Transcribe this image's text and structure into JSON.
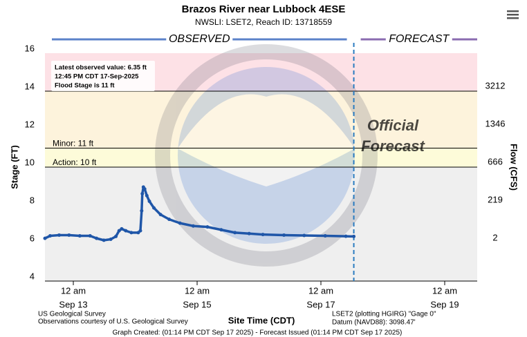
{
  "chart_data": {
    "type": "line",
    "title": "Brazos River near Lubbock 4ESE",
    "subtitle": "NWSLI: LSET2, Reach ID: 13718559",
    "observed_label": "OBSERVED",
    "forecast_label": "FORECAST",
    "watermark": [
      "Official",
      "Forecast"
    ],
    "ylabel": "Stage (FT)",
    "y2label": "Flow (CFS)",
    "xlabel": "Site Time (CDT)",
    "ylim": [
      4,
      16
    ],
    "yticks": [
      4,
      6,
      8,
      10,
      12,
      14,
      16
    ],
    "flow_ticks": [
      {
        "value": 14,
        "label": "3212"
      },
      {
        "value": 12,
        "label": "1346"
      },
      {
        "value": 10,
        "label": "666"
      },
      {
        "value": 8,
        "label": "219"
      },
      {
        "value": 6,
        "label": "2"
      }
    ],
    "xlim": [
      "Sep 12 13:00",
      "Sep 19 12:36"
    ],
    "xticks": [
      {
        "value": "Sep 13 00:00",
        "label": "12 am",
        "date": "Sep 13"
      },
      {
        "value": "Sep 15 00:00",
        "label": "12 am",
        "date": "Sep 15"
      },
      {
        "value": "Sep 17 00:00",
        "label": "12 am",
        "date": "Sep 17"
      },
      {
        "value": "Sep 19 00:00",
        "label": "12 am",
        "date": "Sep 19"
      }
    ],
    "forecast_start": "Sep 17 12:45",
    "bands": [
      {
        "from": 14,
        "to": 16,
        "color": "#fde1e6"
      },
      {
        "from": 11,
        "to": 14,
        "color": "#fdf3dc"
      },
      {
        "from": 10,
        "to": 11,
        "color": "#fdfbd9"
      },
      {
        "from": 4,
        "to": 10,
        "color": "#efefef"
      }
    ],
    "thresholds": [
      {
        "value": 14,
        "label": null
      },
      {
        "value": 11,
        "label": "Minor: 11 ft"
      },
      {
        "value": 10,
        "label": "Action: 10 ft"
      }
    ],
    "info": [
      "Latest observed value: 6.35 ft",
      "12:45 PM CDT 17-Sep-2025",
      "Flood Stage is 11 ft"
    ],
    "series": [
      {
        "name": "Observed",
        "color": "#1f56a8",
        "x": [
          "Sep 12 13:00",
          "Sep 12 15:00",
          "Sep 12 18:30",
          "Sep 12 22:20",
          "Sep 13 02:30",
          "Sep 13 06:30",
          "Sep 13 09:00",
          "Sep 13 11:50",
          "Sep 13 14:30",
          "Sep 13 16:30",
          "Sep 13 17:45",
          "Sep 13 18:45",
          "Sep 13 20:20",
          "Sep 13 22:30",
          "Sep 14 01:10",
          "Sep 14 02:00",
          "Sep 14 02:30",
          "Sep 14 02:45",
          "Sep 14 03:10",
          "Sep 14 03:40",
          "Sep 14 04:30",
          "Sep 14 05:30",
          "Sep 14 07:15",
          "Sep 14 09:50",
          "Sep 14 13:10",
          "Sep 14 17:20",
          "Sep 14 22:30",
          "Sep 15 04:00",
          "Sep 15 09:20",
          "Sep 15 14:40",
          "Sep 15 20:10",
          "Sep 16 01:30",
          "Sep 16 09:40",
          "Sep 16 17:30",
          "Sep 17 01:40",
          "Sep 17 09:40",
          "Sep 17 12:45"
        ],
        "values": [
          6.25,
          6.38,
          6.42,
          6.42,
          6.38,
          6.38,
          6.25,
          6.15,
          6.2,
          6.35,
          6.65,
          6.75,
          6.65,
          6.55,
          6.55,
          6.65,
          7.7,
          8.6,
          8.95,
          8.85,
          8.5,
          8.2,
          7.85,
          7.5,
          7.25,
          7.05,
          6.9,
          6.85,
          6.7,
          6.55,
          6.5,
          6.45,
          6.42,
          6.4,
          6.38,
          6.36,
          6.35
        ]
      }
    ],
    "footer_left": [
      "US Geological Survey",
      "Observations courtesy of U.S. Geological Survey"
    ],
    "footer_right": [
      "LSET2 (plotting HGIRG) \"Gage 0\"",
      "Datum (NAVD88): 3098.47'"
    ],
    "footer": "Graph Created: (01:14 PM CDT Sep 17 2025) - Forecast Issued (01:14 PM CDT Sep 17 2025)"
  }
}
